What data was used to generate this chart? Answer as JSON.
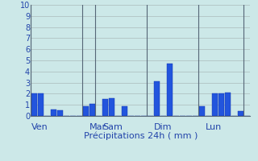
{
  "title": "",
  "xlabel": "Précipitations 24h ( mm )",
  "ylabel": "",
  "ylim": [
    0,
    10
  ],
  "bg_color": "#cce8e8",
  "plot_bg_color": "#cce8e8",
  "bar_color": "#2255dd",
  "grid_color": "#aabbbb",
  "bar_edge_color": "#1133aa",
  "values": [
    2.0,
    2.0,
    0.0,
    0.6,
    0.5,
    0.0,
    0.0,
    0.0,
    0.9,
    1.1,
    0.0,
    1.5,
    1.6,
    0.0,
    0.9,
    0.0,
    0.0,
    0.0,
    0.0,
    3.1,
    0.0,
    4.7,
    0.0,
    0.0,
    0.0,
    0.0,
    0.9,
    0.0,
    2.0,
    2.0,
    2.1,
    0.0,
    0.4,
    0.0
  ],
  "day_labels": [
    {
      "label": "Ven",
      "x": 0
    },
    {
      "label": "Mar",
      "x": 9
    },
    {
      "label": "Sam",
      "x": 11
    },
    {
      "label": "Dim",
      "x": 19
    },
    {
      "label": "Lun",
      "x": 27
    }
  ],
  "day_lines_x": [
    0,
    8,
    10,
    18,
    26,
    33
  ],
  "xlabel_color": "#2244aa",
  "tick_color": "#2244aa",
  "label_fontsize": 8,
  "ytick_fontsize": 7
}
